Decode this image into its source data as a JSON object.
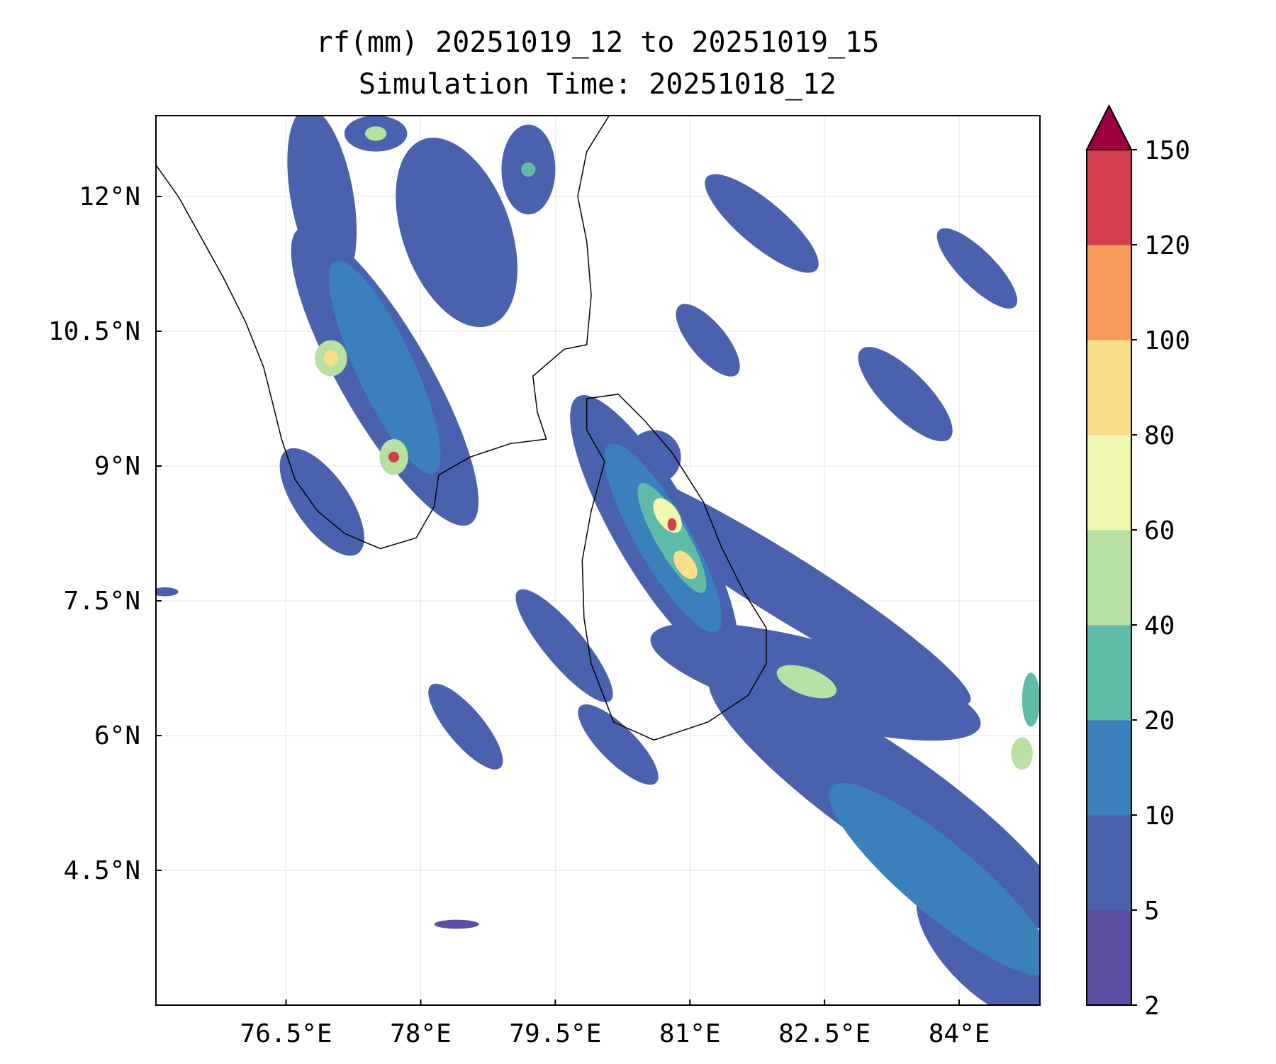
{
  "chart_data": {
    "type": "heatmap",
    "title_line1": "rf(mm) 20251019_12 to 20251019_15",
    "title_line2": "Simulation Time: 20251018_12",
    "variable": "rf",
    "units": "mm",
    "valid_start": "20251019_12",
    "valid_end": "20251019_15",
    "simulation_time": "20251018_12",
    "xlim": [
      75.05,
      84.9
    ],
    "ylim": [
      3.0,
      12.9
    ],
    "x_ticks": [
      {
        "value": 76.5,
        "label": "76.5°E"
      },
      {
        "value": 78.0,
        "label": "78°E"
      },
      {
        "value": 79.5,
        "label": "79.5°E"
      },
      {
        "value": 81.0,
        "label": "81°E"
      },
      {
        "value": 82.5,
        "label": "82.5°E"
      },
      {
        "value": 84.0,
        "label": "84°E"
      }
    ],
    "y_ticks": [
      {
        "value": 4.5,
        "label": "4.5°N"
      },
      {
        "value": 6.0,
        "label": "6°N"
      },
      {
        "value": 7.5,
        "label": "7.5°N"
      },
      {
        "value": 9.0,
        "label": "9°N"
      },
      {
        "value": 10.5,
        "label": "10.5°N"
      },
      {
        "value": 12.0,
        "label": "12°N"
      }
    ],
    "grid": true,
    "colorbar": {
      "levels": [
        2,
        5,
        10,
        20,
        40,
        60,
        80,
        100,
        120,
        150
      ],
      "labels": [
        "2",
        "5",
        "10",
        "20",
        "40",
        "60",
        "80",
        "100",
        "120",
        "150"
      ],
      "colors": [
        "#5a4fa2",
        "#4a62ad",
        "#3a80bb",
        "#5fbaa8",
        "#b8e0a2",
        "#eff8ae",
        "#fbde8a",
        "#f99b5b",
        "#d33e4f"
      ],
      "extend_color": "#9e0142",
      "extend": "max"
    },
    "rain_cells": [
      {
        "lon": 77.6,
        "lat": 10.0,
        "rx": 0.5,
        "ry": 1.9,
        "rot": -30,
        "level": 1
      },
      {
        "lon": 76.9,
        "lat": 12.0,
        "rx": 0.35,
        "ry": 1.0,
        "rot": -10,
        "level": 1
      },
      {
        "lon": 78.4,
        "lat": 11.6,
        "rx": 0.6,
        "ry": 1.1,
        "rot": -20,
        "level": 1
      },
      {
        "lon": 77.6,
        "lat": 10.1,
        "rx": 0.32,
        "ry": 1.3,
        "rot": -25,
        "level": 2
      },
      {
        "lon": 77.0,
        "lat": 10.2,
        "rx": 0.18,
        "ry": 0.2,
        "rot": 0,
        "level": 4
      },
      {
        "lon": 77.0,
        "lat": 10.2,
        "rx": 0.08,
        "ry": 0.09,
        "rot": 0,
        "level": 6
      },
      {
        "lon": 77.7,
        "lat": 9.1,
        "rx": 0.16,
        "ry": 0.2,
        "rot": 0,
        "level": 4
      },
      {
        "lon": 77.7,
        "lat": 9.1,
        "rx": 0.06,
        "ry": 0.06,
        "rot": 0,
        "level": 8
      },
      {
        "lon": 76.9,
        "lat": 8.6,
        "rx": 0.3,
        "ry": 0.7,
        "rot": -35,
        "level": 1
      },
      {
        "lon": 77.5,
        "lat": 12.7,
        "rx": 0.35,
        "ry": 0.2,
        "rot": 0,
        "level": 1
      },
      {
        "lon": 77.5,
        "lat": 12.7,
        "rx": 0.12,
        "ry": 0.08,
        "rot": 0,
        "level": 4
      },
      {
        "lon": 79.2,
        "lat": 12.3,
        "rx": 0.3,
        "ry": 0.5,
        "rot": 0,
        "level": 1
      },
      {
        "lon": 79.2,
        "lat": 12.3,
        "rx": 0.08,
        "ry": 0.08,
        "rot": 0,
        "level": 3
      },
      {
        "lon": 80.6,
        "lat": 8.3,
        "rx": 0.45,
        "ry": 1.7,
        "rot": -30,
        "level": 1
      },
      {
        "lon": 80.7,
        "lat": 8.2,
        "rx": 0.3,
        "ry": 1.2,
        "rot": -30,
        "level": 2
      },
      {
        "lon": 80.8,
        "lat": 8.2,
        "rx": 0.18,
        "ry": 0.7,
        "rot": -30,
        "level": 3
      },
      {
        "lon": 80.75,
        "lat": 8.45,
        "rx": 0.12,
        "ry": 0.22,
        "rot": -35,
        "level": 5
      },
      {
        "lon": 80.95,
        "lat": 7.9,
        "rx": 0.1,
        "ry": 0.18,
        "rot": -35,
        "level": 6
      },
      {
        "lon": 80.8,
        "lat": 8.35,
        "rx": 0.05,
        "ry": 0.07,
        "rot": 0,
        "level": 8
      },
      {
        "lon": 80.6,
        "lat": 9.1,
        "rx": 0.3,
        "ry": 0.3,
        "rot": 0,
        "level": 1
      },
      {
        "lon": 82.0,
        "lat": 7.7,
        "rx": 0.35,
        "ry": 2.5,
        "rot": -58,
        "level": 1
      },
      {
        "lon": 82.4,
        "lat": 6.6,
        "rx": 0.45,
        "ry": 1.9,
        "rot": -75,
        "level": 1
      },
      {
        "lon": 82.3,
        "lat": 6.6,
        "rx": 0.15,
        "ry": 0.35,
        "rot": -70,
        "level": 4
      },
      {
        "lon": 83.2,
        "lat": 5.3,
        "rx": 0.55,
        "ry": 2.4,
        "rot": -55,
        "level": 1
      },
      {
        "lon": 83.8,
        "lat": 4.4,
        "rx": 0.4,
        "ry": 1.6,
        "rot": -50,
        "level": 2
      },
      {
        "lon": 84.7,
        "lat": 5.8,
        "rx": 0.12,
        "ry": 0.18,
        "rot": 0,
        "level": 4
      },
      {
        "lon": 84.8,
        "lat": 6.4,
        "rx": 0.1,
        "ry": 0.3,
        "rot": 0,
        "level": 3
      },
      {
        "lon": 84.3,
        "lat": 3.6,
        "rx": 0.45,
        "ry": 1.0,
        "rot": -45,
        "level": 1
      },
      {
        "lon": 81.8,
        "lat": 11.7,
        "rx": 0.25,
        "ry": 0.8,
        "rot": -50,
        "level": 1
      },
      {
        "lon": 81.2,
        "lat": 10.4,
        "rx": 0.2,
        "ry": 0.5,
        "rot": -40,
        "level": 1
      },
      {
        "lon": 83.4,
        "lat": 9.8,
        "rx": 0.25,
        "ry": 0.7,
        "rot": -45,
        "level": 1
      },
      {
        "lon": 84.2,
        "lat": 11.2,
        "rx": 0.2,
        "ry": 0.6,
        "rot": -45,
        "level": 1
      },
      {
        "lon": 79.6,
        "lat": 7.0,
        "rx": 0.22,
        "ry": 0.8,
        "rot": -40,
        "level": 1
      },
      {
        "lon": 78.5,
        "lat": 6.1,
        "rx": 0.2,
        "ry": 0.6,
        "rot": -40,
        "level": 1
      },
      {
        "lon": 80.2,
        "lat": 5.9,
        "rx": 0.2,
        "ry": 0.6,
        "rot": -45,
        "level": 1
      },
      {
        "lon": 75.15,
        "lat": 7.6,
        "rx": 0.15,
        "ry": 0.05,
        "rot": 0,
        "level": 1
      },
      {
        "lon": 78.4,
        "lat": 3.9,
        "rx": 0.25,
        "ry": 0.05,
        "rot": 0,
        "level": 0
      }
    ]
  }
}
